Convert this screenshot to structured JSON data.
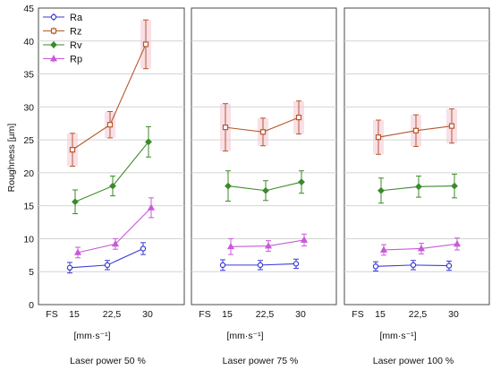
{
  "chart_data": {
    "type": "line",
    "ylabel": "Roughness [µm]",
    "ylim": [
      0,
      45
    ],
    "yticks": [
      0,
      5,
      10,
      15,
      20,
      25,
      30,
      35,
      40,
      45
    ],
    "grid": true,
    "legend_position": "top-left",
    "categories": [
      "FS",
      "15",
      "22,5",
      "30"
    ],
    "unit_label": "[mm·s⁻¹]",
    "series_style": [
      {
        "name": "Ra",
        "color": "#3a3ad6",
        "marker": "circle"
      },
      {
        "name": "Rz",
        "color": "#b5582e",
        "marker": "square"
      },
      {
        "name": "Rv",
        "color": "#3b8a2a",
        "marker": "diamond"
      },
      {
        "name": "Rp",
        "color": "#c85ad8",
        "marker": "triangle"
      }
    ],
    "panels": [
      {
        "title": "Laser power 50 %",
        "series": [
          {
            "name": "Ra",
            "x": [
              "15",
              "22,5",
              "30"
            ],
            "values": [
              5.6,
              6.0,
              8.5
            ],
            "err": [
              0.8,
              0.7,
              0.9
            ]
          },
          {
            "name": "Rz",
            "x": [
              "15",
              "22,5",
              "30"
            ],
            "values": [
              23.5,
              27.3,
              39.5
            ],
            "err": [
              2.5,
              2.0,
              3.7
            ]
          },
          {
            "name": "Rv",
            "x": [
              "15",
              "22,5",
              "30"
            ],
            "values": [
              15.6,
              18.0,
              24.7
            ],
            "err": [
              1.8,
              1.5,
              2.3
            ]
          },
          {
            "name": "Rp",
            "x": [
              "15",
              "22,5",
              "30"
            ],
            "values": [
              7.9,
              9.2,
              14.7
            ],
            "err": [
              0.8,
              0.8,
              1.5
            ]
          }
        ]
      },
      {
        "title": "Laser power 75 %",
        "series": [
          {
            "name": "Ra",
            "x": [
              "15",
              "22,5",
              "30"
            ],
            "values": [
              6.0,
              6.0,
              6.2
            ],
            "err": [
              0.8,
              0.7,
              0.7
            ]
          },
          {
            "name": "Rz",
            "x": [
              "15",
              "22,5",
              "30"
            ],
            "values": [
              26.9,
              26.2,
              28.4
            ],
            "err": [
              3.6,
              2.1,
              2.5
            ]
          },
          {
            "name": "Rv",
            "x": [
              "15",
              "22,5",
              "30"
            ],
            "values": [
              18.0,
              17.3,
              18.6
            ],
            "err": [
              2.3,
              1.5,
              1.7
            ]
          },
          {
            "name": "Rp",
            "x": [
              "15",
              "22,5",
              "30"
            ],
            "values": [
              8.8,
              8.9,
              9.8
            ],
            "err": [
              1.2,
              0.8,
              0.9
            ]
          }
        ]
      },
      {
        "title": "Laser power 100 %",
        "series": [
          {
            "name": "Ra",
            "x": [
              "15",
              "22,5",
              "30"
            ],
            "values": [
              5.8,
              6.0,
              5.9
            ],
            "err": [
              0.7,
              0.7,
              0.7
            ]
          },
          {
            "name": "Rz",
            "x": [
              "15",
              "22,5",
              "30"
            ],
            "values": [
              25.4,
              26.4,
              27.1
            ],
            "err": [
              2.6,
              2.4,
              2.6
            ]
          },
          {
            "name": "Rv",
            "x": [
              "15",
              "22,5",
              "30"
            ],
            "values": [
              17.3,
              17.9,
              18.0
            ],
            "err": [
              1.9,
              1.6,
              1.8
            ]
          },
          {
            "name": "Rp",
            "x": [
              "15",
              "22,5",
              "30"
            ],
            "values": [
              8.3,
              8.5,
              9.2
            ],
            "err": [
              0.8,
              0.8,
              0.9
            ]
          }
        ]
      }
    ]
  }
}
